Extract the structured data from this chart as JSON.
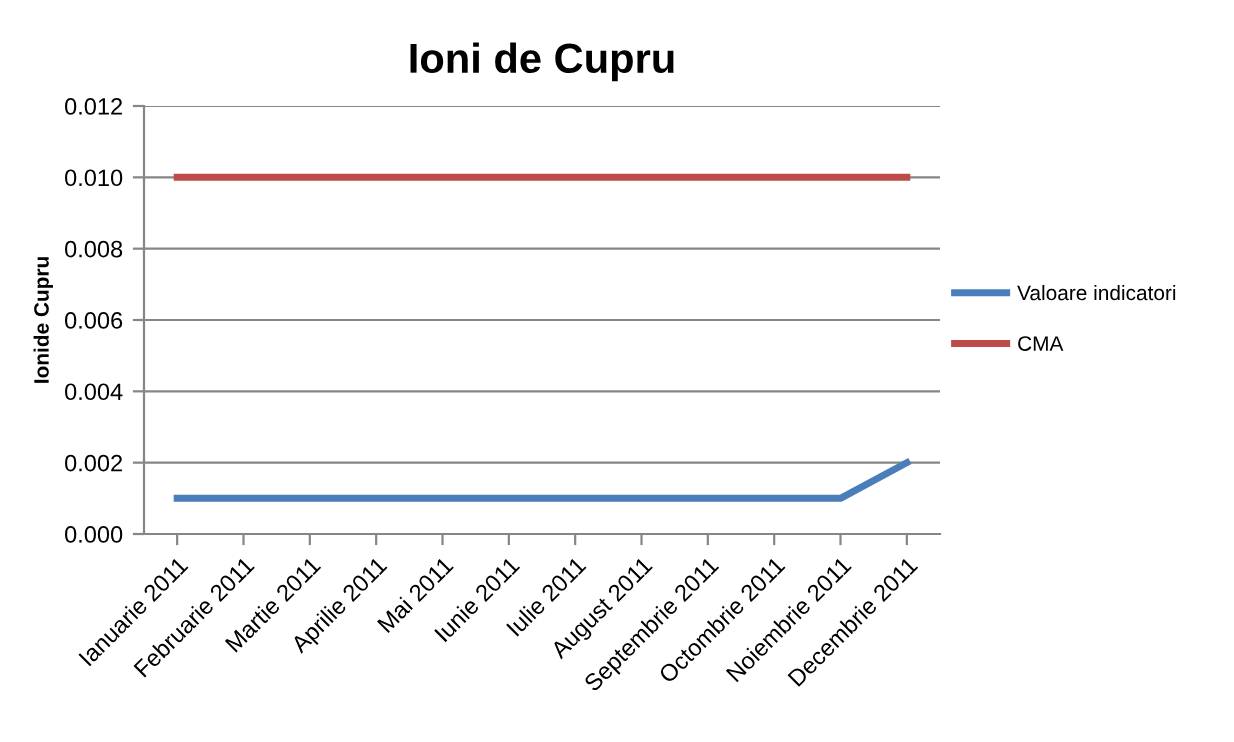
{
  "chart_data": {
    "type": "line",
    "title": "Ioni de Cupru",
    "ylabel": "Ionide Cupru",
    "categories": [
      "Ianuarie 2011",
      "Februarie 2011",
      "Martie 2011",
      "Aprilie 2011",
      "Mai 2011",
      "Iunie 2011",
      "Iulie 2011",
      "August 2011",
      "Septembrie 2011",
      "Octombrie 2011",
      "Noiembrie 2011",
      "Decembrie 2011"
    ],
    "series": [
      {
        "name": "Valoare indicatori",
        "color": "#4a7ebb",
        "values": [
          0.001,
          0.001,
          0.001,
          0.001,
          0.001,
          0.001,
          0.001,
          0.001,
          0.001,
          0.001,
          0.001,
          0.002
        ]
      },
      {
        "name": "CMA",
        "color": "#be4b48",
        "values": [
          0.01,
          0.01,
          0.01,
          0.01,
          0.01,
          0.01,
          0.01,
          0.01,
          0.01,
          0.01,
          0.01,
          0.01
        ]
      }
    ],
    "ylim": [
      0,
      0.012
    ],
    "yticks": [
      {
        "value": 0,
        "label": "0.000"
      },
      {
        "value": 0.002,
        "label": "0.002"
      },
      {
        "value": 0.004,
        "label": "0.004"
      },
      {
        "value": 0.006,
        "label": "0.006"
      },
      {
        "value": 0.008,
        "label": "0.008"
      },
      {
        "value": 0.01,
        "label": "0.010"
      },
      {
        "value": 0.012,
        "label": "0.012"
      }
    ],
    "grid": "y",
    "legend": "right",
    "marker": "none",
    "line_style": "solid"
  }
}
